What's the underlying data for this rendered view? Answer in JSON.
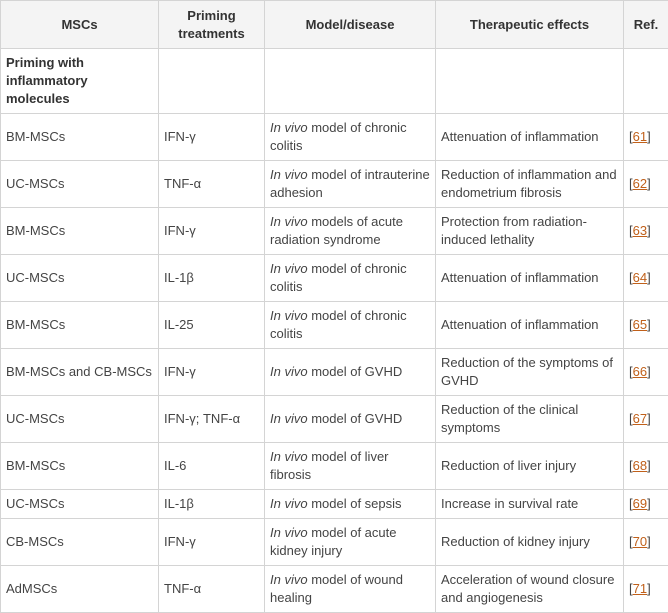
{
  "headers": [
    "MSCs",
    "Priming treatments",
    "Model/disease",
    "Therapeutic effects",
    "Ref."
  ],
  "group_label": "Priming with inflammatory molecules",
  "link_color": "#c0601a",
  "rows": [
    {
      "mscs": "BM-MSCs",
      "priming": "IFN-γ",
      "model_it": "In vivo",
      "model": " model of chronic colitis",
      "effect": "Attenuation of inflammation",
      "ref": "61"
    },
    {
      "mscs": "UC-MSCs",
      "priming": "TNF-α",
      "model_it": "In vivo",
      "model": " model of intrauterine adhesion",
      "effect": "Reduction of inflammation and endometrium fibrosis",
      "ref": "62"
    },
    {
      "mscs": "BM-MSCs",
      "priming": "IFN-γ",
      "model_it": "In vivo",
      "model": " models of acute radiation syndrome",
      "effect": "Protection from radiation-induced lethality",
      "ref": "63"
    },
    {
      "mscs": "UC-MSCs",
      "priming": "IL-1β",
      "model_it": "In vivo",
      "model": " model of chronic colitis",
      "effect": "Attenuation of inflammation",
      "ref": "64"
    },
    {
      "mscs": "BM-MSCs",
      "priming": "IL-25",
      "model_it": "In vivo",
      "model": " model of chronic colitis",
      "effect": "Attenuation of inflammation",
      "ref": "65"
    },
    {
      "mscs": "BM-MSCs and CB-MSCs",
      "priming": "IFN-γ",
      "model_it": "In vivo",
      "model": " model of GVHD",
      "effect": "Reduction of the symptoms of GVHD",
      "ref": "66"
    },
    {
      "mscs": "UC-MSCs",
      "priming": "IFN-γ; TNF-α",
      "model_it": "In vivo",
      "model": " model of GVHD",
      "effect": "Reduction of the clinical symptoms",
      "ref": "67"
    },
    {
      "mscs": "BM-MSCs",
      "priming": "IL-6",
      "model_it": "In vivo",
      "model": " model of liver fibrosis",
      "effect": "Reduction of liver injury",
      "ref": "68"
    },
    {
      "mscs": "UC-MSCs",
      "priming": "IL-1β",
      "model_it": "In vivo",
      "model": " model of sepsis",
      "effect": "Increase in survival rate",
      "ref": "69"
    },
    {
      "mscs": "CB-MSCs",
      "priming": "IFN-γ",
      "model_it": "In vivo",
      "model": " model of acute kidney injury",
      "effect": "Reduction of kidney injury",
      "ref": "70"
    },
    {
      "mscs": "AdMSCs",
      "priming": "TNF-α",
      "model_it": "In vivo",
      "model": " model of wound healing",
      "effect": "Acceleration of wound closure and angiogenesis",
      "ref": "71"
    }
  ]
}
